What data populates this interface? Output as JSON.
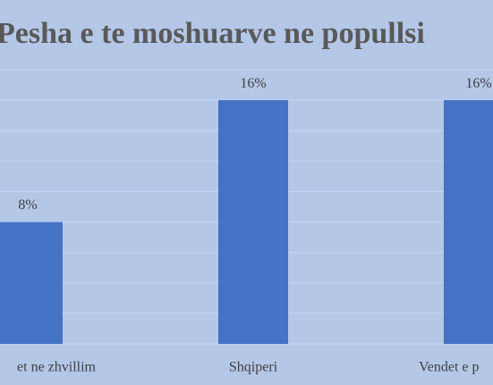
{
  "chart_data": {
    "type": "bar",
    "title": "Pesha e te moshuarve ne popullsi",
    "categories": [
      "et ne zhvillim",
      "Shqiperi",
      "Vendet e p"
    ],
    "values": [
      8,
      16,
      16
    ],
    "value_labels": [
      "8%",
      "16%",
      "16%"
    ],
    "color": "#4472c4",
    "ylim": [
      0,
      18
    ],
    "yticks": [
      0,
      2,
      4,
      6,
      8,
      10,
      12,
      14,
      16,
      18
    ],
    "grid": true
  }
}
